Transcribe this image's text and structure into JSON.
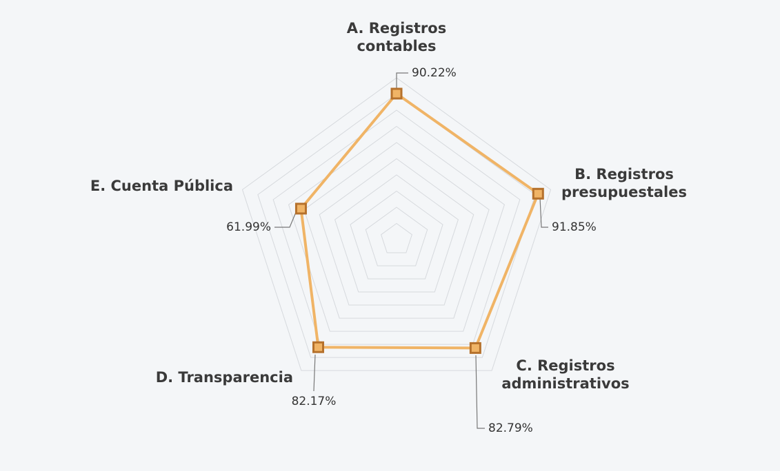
{
  "chart_data": {
    "type": "radar",
    "categories": [
      "A. Registros contables",
      "B. Registros presupuestales",
      "C. Registros administrativos",
      "D. Transparencia",
      "E. Cuenta Pública"
    ],
    "values": [
      90.22,
      91.85,
      82.79,
      82.17,
      61.99
    ],
    "value_labels": [
      "90.22%",
      "91.85%",
      "82.79%",
      "82.17%",
      "61.99%"
    ],
    "color": "#f0b466",
    "marker_color": "#b5712c",
    "ylim": [
      0,
      100
    ],
    "yticks": [
      10,
      20,
      30,
      40,
      50,
      60,
      70,
      80,
      90,
      100
    ],
    "grid": true
  }
}
